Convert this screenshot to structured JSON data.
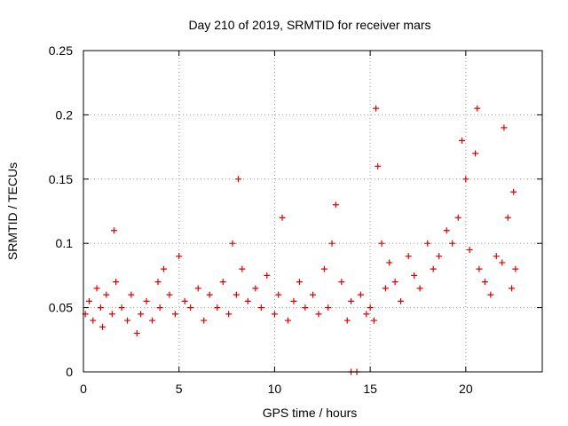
{
  "chart_data": {
    "type": "scatter",
    "title": "Day 210 of 2019, SRMTID for receiver mars",
    "xlabel": "GPS time / hours",
    "ylabel": "SRMTID / TECUs",
    "xlim": [
      0,
      24
    ],
    "ylim": [
      0,
      0.25
    ],
    "x_ticks": [
      0,
      5,
      10,
      15,
      20
    ],
    "x_tick_labels": [
      "0",
      "5",
      "10",
      "15",
      "20"
    ],
    "y_ticks": [
      0,
      0.05,
      0.1,
      0.15,
      0.2,
      0.25
    ],
    "y_tick_labels": [
      "0",
      "0.05",
      "0.1",
      "0.15",
      "0.2",
      "0.25"
    ],
    "grid": true,
    "marker": "+",
    "series": [
      {
        "name": "SRMTID",
        "color": "#dd0000",
        "x": [
          0.1,
          0.3,
          0.5,
          0.7,
          0.9,
          1.0,
          1.2,
          1.5,
          1.6,
          1.7,
          2.0,
          2.3,
          2.5,
          2.8,
          3.0,
          3.3,
          3.6,
          3.9,
          4.0,
          4.2,
          4.5,
          4.8,
          5.0,
          5.3,
          5.6,
          6.0,
          6.3,
          6.6,
          7.0,
          7.3,
          7.6,
          7.8,
          8.0,
          8.1,
          8.3,
          8.6,
          9.0,
          9.3,
          9.6,
          10.0,
          10.2,
          10.4,
          10.7,
          11.0,
          11.3,
          11.6,
          12.0,
          12.3,
          12.6,
          12.8,
          13.0,
          13.2,
          13.5,
          13.8,
          14.0,
          14.5,
          14.8,
          15.0,
          15.2,
          15.3,
          15.4,
          15.6,
          15.8,
          16.0,
          16.3,
          16.6,
          17.0,
          17.3,
          17.6,
          18.0,
          18.3,
          18.6,
          19.0,
          19.3,
          19.6,
          19.8,
          20.0,
          20.2,
          20.5,
          20.6,
          20.7,
          21.0,
          21.3,
          21.6,
          21.9,
          22.0,
          22.2,
          22.4,
          22.5,
          22.6,
          14.0,
          14.3
        ],
        "y": [
          0.045,
          0.055,
          0.04,
          0.065,
          0.05,
          0.035,
          0.06,
          0.045,
          0.11,
          0.07,
          0.05,
          0.04,
          0.06,
          0.03,
          0.045,
          0.055,
          0.04,
          0.07,
          0.05,
          0.08,
          0.06,
          0.045,
          0.09,
          0.055,
          0.05,
          0.065,
          0.04,
          0.06,
          0.05,
          0.07,
          0.045,
          0.1,
          0.06,
          0.15,
          0.08,
          0.055,
          0.065,
          0.05,
          0.075,
          0.045,
          0.06,
          0.12,
          0.04,
          0.055,
          0.07,
          0.05,
          0.06,
          0.045,
          0.08,
          0.05,
          0.1,
          0.13,
          0.07,
          0.04,
          0.055,
          0.06,
          0.045,
          0.05,
          0.04,
          0.205,
          0.16,
          0.1,
          0.065,
          0.085,
          0.07,
          0.055,
          0.09,
          0.075,
          0.065,
          0.1,
          0.08,
          0.09,
          0.11,
          0.1,
          0.12,
          0.18,
          0.15,
          0.095,
          0.17,
          0.205,
          0.08,
          0.07,
          0.06,
          0.09,
          0.085,
          0.19,
          0.12,
          0.065,
          0.14,
          0.08,
          0.0,
          0.0
        ]
      }
    ]
  }
}
